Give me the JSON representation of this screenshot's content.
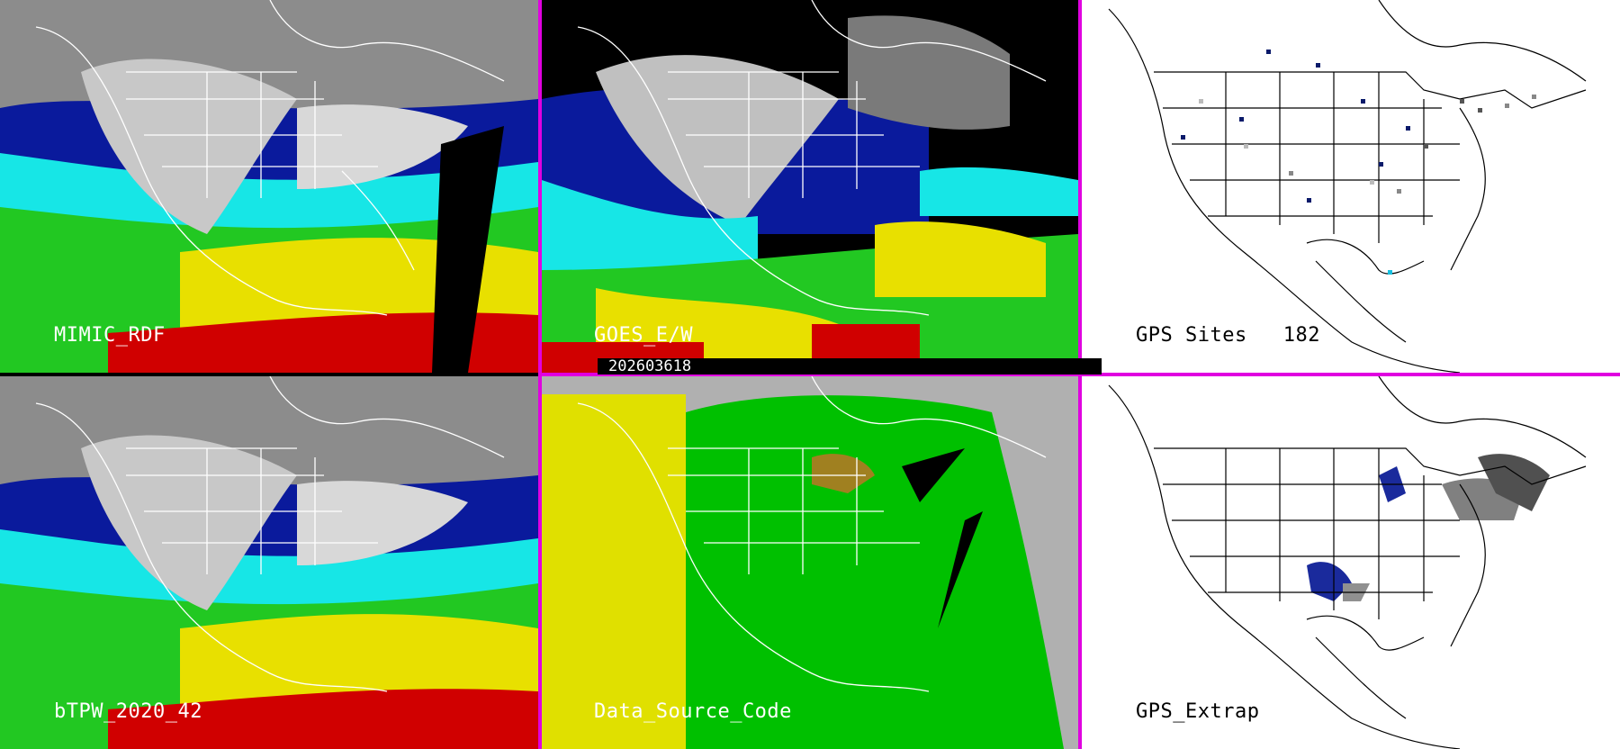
{
  "timestamp": "202603618",
  "panels": [
    {
      "id": "tl",
      "label": "MIMIC_RDF",
      "style": "tpw"
    },
    {
      "id": "tm",
      "label": "GOES_E/W",
      "style": "goes"
    },
    {
      "id": "tr",
      "label": "GPS Sites",
      "count": "182",
      "style": "gps"
    },
    {
      "id": "bl",
      "label": "bTPW_2020_42",
      "style": "tpw"
    },
    {
      "id": "bm",
      "label": "Data_Source_Code",
      "style": "dsc"
    },
    {
      "id": "br",
      "label": "GPS_Extrap",
      "style": "extrap"
    }
  ],
  "colors": {
    "divider": "#e000e0",
    "tpw_scale": [
      "#bdbdbd",
      "#0a1a9c",
      "#1a7fd8",
      "#17e6e6",
      "#22c822",
      "#e8e000",
      "#d00000"
    ],
    "dsc_geo": "#e0e000",
    "dsc_goes": "#00c000",
    "dsc_missing": "#b0b0b0",
    "dsc_blend": "#a08020"
  }
}
